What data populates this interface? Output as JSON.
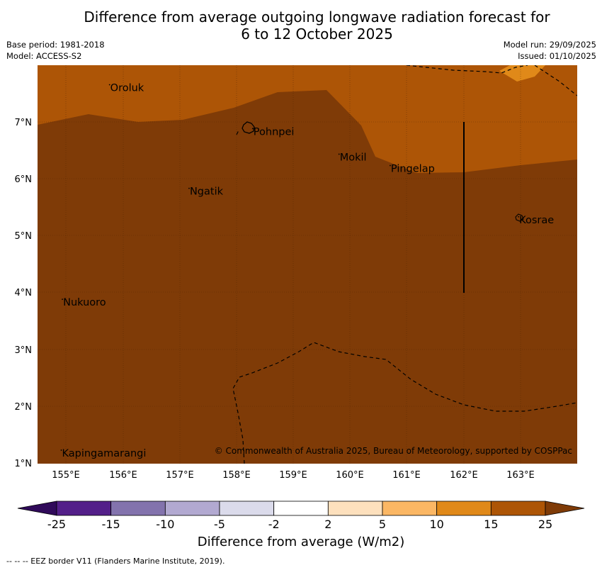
{
  "title": {
    "line1": "Difference from average outgoing longwave radiation forecast for",
    "line2": "6 to 12 October 2025"
  },
  "meta": {
    "base_period": "Base period: 1981-2018",
    "model": "Model: ACCESS-S2",
    "model_run": "Model run: 29/09/2025",
    "issued": "Issued: 01/10/2025"
  },
  "axes": {
    "lat_labels": [
      "7°N",
      "6°N",
      "5°N",
      "4°N",
      "3°N",
      "2°N",
      "1°N"
    ],
    "lon_labels": [
      "155°E",
      "156°E",
      "157°E",
      "158°E",
      "159°E",
      "160°E",
      "161°E",
      "162°E",
      "163°E"
    ]
  },
  "places": [
    {
      "name": "Oroluk",
      "lon": 155.78,
      "lat": 7.62
    },
    {
      "name": "Pohnpei",
      "lon": 158.3,
      "lat": 6.85
    },
    {
      "name": "Mokil",
      "lon": 159.82,
      "lat": 6.4
    },
    {
      "name": "Pingelap",
      "lon": 160.72,
      "lat": 6.2
    },
    {
      "name": "Ngatik",
      "lon": 157.18,
      "lat": 5.8
    },
    {
      "name": "Kosrae",
      "lon": 162.98,
      "lat": 5.3
    },
    {
      "name": "Nukuoro",
      "lon": 154.95,
      "lat": 3.85
    },
    {
      "name": "Kapingamarangi",
      "lon": 154.93,
      "lat": 1.2
    }
  ],
  "copyright": "© Commonwealth of Australia 2025, Bureau of Meteorology, supported by COSPPac",
  "colorbar": {
    "title": "Difference from average (W/m2)",
    "tick_labels": [
      "-25",
      "-15",
      "-10",
      "-5",
      "-2",
      "2",
      "5",
      "10",
      "15",
      "25"
    ],
    "colors": [
      "#531f89",
      "#8373ad",
      "#b2a9d1",
      "#dbdbeb",
      "#ffffff",
      "#fde0bd",
      "#fbb764",
      "#e08919",
      "#ad5506"
    ],
    "under_color": "#300a5a",
    "over_color": "#7f3b07"
  },
  "footer": "--  --  -- EEZ border V11 (Flanders Marine Institute, 2019).",
  "colors": {
    "anomaly_15_25": "#ad5506",
    "anomaly_over_25": "#7f3b07",
    "anomaly_10_15": "#e08919"
  }
}
